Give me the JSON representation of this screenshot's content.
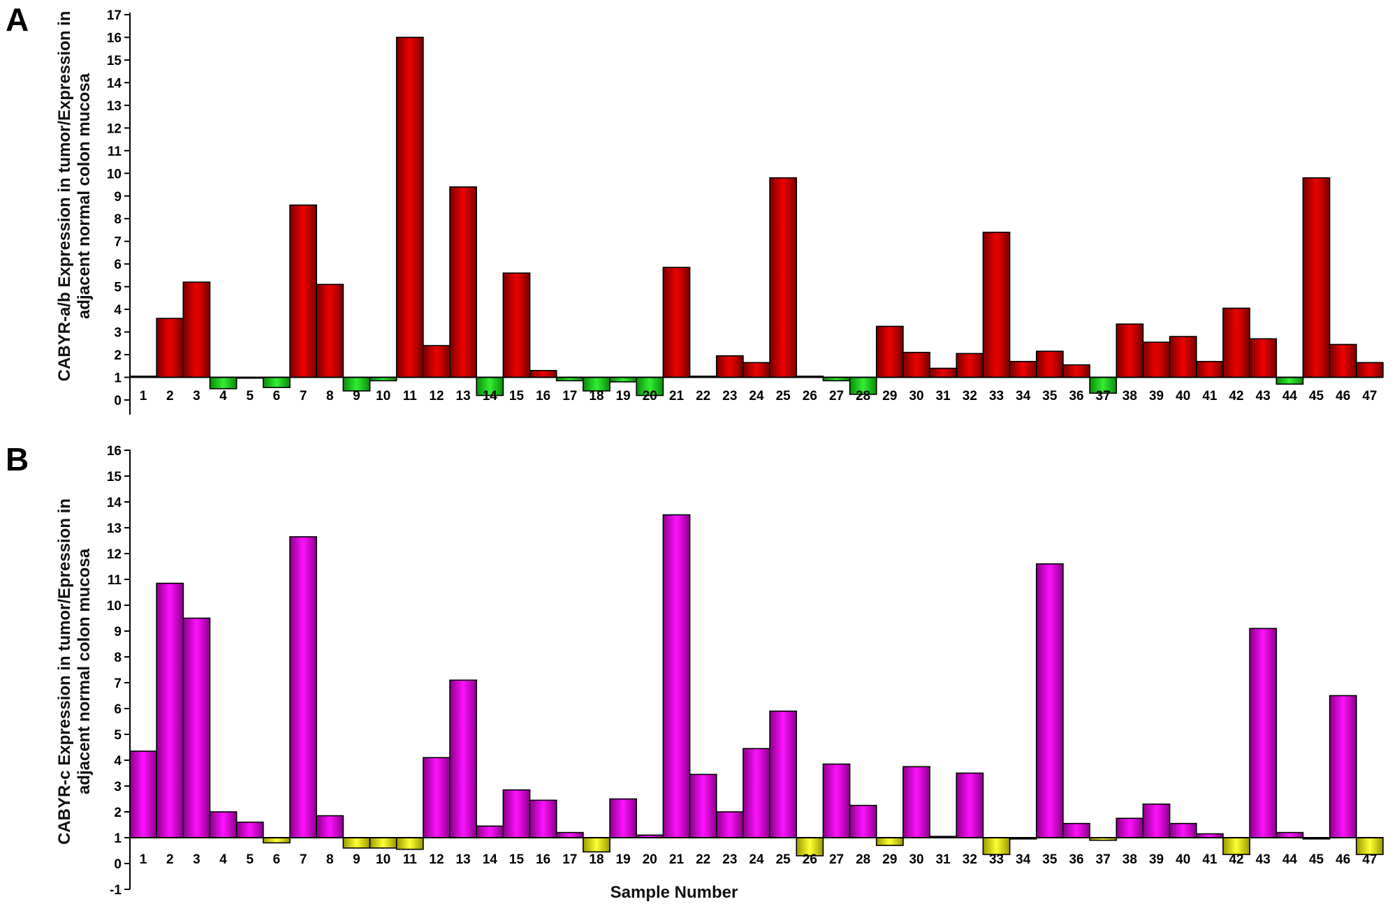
{
  "chart_data": [
    {
      "panel_label": "A",
      "type": "bar",
      "ylabel_lines": [
        "CABYR-a/b Expression in tumor/Expression in",
        "adjacent normal colon mucosa"
      ],
      "xlabel": "",
      "ylim": [
        0,
        17
      ],
      "baseline": 1,
      "y_ticks": [
        0,
        1,
        2,
        3,
        4,
        5,
        6,
        7,
        8,
        9,
        10,
        11,
        12,
        13,
        14,
        15,
        16,
        17
      ],
      "categories": [
        "1",
        "2",
        "3",
        "4",
        "5",
        "6",
        "7",
        "8",
        "9",
        "10",
        "11",
        "12",
        "13",
        "14",
        "15",
        "16",
        "17",
        "18",
        "19",
        "20",
        "21",
        "22",
        "23",
        "24",
        "25",
        "26",
        "27",
        "28",
        "29",
        "30",
        "31",
        "32",
        "33",
        "34",
        "35",
        "36",
        "37",
        "38",
        "39",
        "40",
        "41",
        "42",
        "43",
        "44",
        "45",
        "46",
        "47"
      ],
      "values": [
        1.05,
        3.6,
        5.2,
        0.5,
        1.0,
        0.55,
        8.6,
        5.1,
        0.4,
        0.85,
        16.0,
        2.4,
        9.4,
        0.2,
        5.6,
        1.3,
        0.85,
        0.4,
        0.8,
        0.2,
        5.85,
        1.05,
        1.95,
        1.65,
        9.8,
        1.05,
        0.85,
        0.25,
        3.25,
        2.1,
        1.4,
        2.05,
        7.4,
        1.7,
        2.15,
        1.55,
        0.3,
        3.35,
        2.55,
        2.8,
        1.7,
        4.05,
        2.7,
        0.7,
        9.8,
        2.45,
        1.65
      ],
      "colors": {
        "up": "#dd0000",
        "down": "#22dd22"
      },
      "grid": false
    },
    {
      "panel_label": "B",
      "type": "bar",
      "ylabel_lines": [
        "CABYR-c Expression in tumor/Epression in",
        "adjacent normal colon mucosa"
      ],
      "xlabel": "Sample Number",
      "ylim": [
        -1,
        16
      ],
      "baseline": 1,
      "y_ticks": [
        -1,
        0,
        1,
        2,
        3,
        4,
        5,
        6,
        7,
        8,
        9,
        10,
        11,
        12,
        13,
        14,
        15,
        16
      ],
      "categories": [
        "1",
        "2",
        "3",
        "4",
        "5",
        "6",
        "7",
        "8",
        "9",
        "10",
        "11",
        "12",
        "13",
        "14",
        "15",
        "16",
        "17",
        "18",
        "19",
        "20",
        "21",
        "22",
        "23",
        "24",
        "25",
        "26",
        "27",
        "28",
        "29",
        "30",
        "31",
        "32",
        "33",
        "34",
        "35",
        "36",
        "37",
        "38",
        "39",
        "40",
        "41",
        "42",
        "43",
        "44",
        "45",
        "46",
        "47"
      ],
      "values": [
        4.35,
        10.85,
        9.5,
        2.0,
        1.6,
        0.8,
        12.65,
        1.85,
        0.6,
        0.6,
        0.55,
        4.1,
        7.1,
        1.45,
        2.85,
        2.45,
        1.2,
        0.45,
        2.5,
        1.1,
        13.5,
        3.45,
        2.0,
        4.45,
        5.9,
        0.3,
        3.85,
        2.25,
        0.7,
        3.75,
        1.05,
        3.5,
        0.35,
        0.95,
        11.6,
        1.55,
        0.9,
        1.75,
        2.3,
        1.55,
        1.15,
        0.35,
        9.1,
        1.2,
        0.95,
        6.5,
        0.35
      ],
      "colors": {
        "up": "#ee00ee",
        "down": "#eeee22"
      },
      "grid": false
    }
  ]
}
